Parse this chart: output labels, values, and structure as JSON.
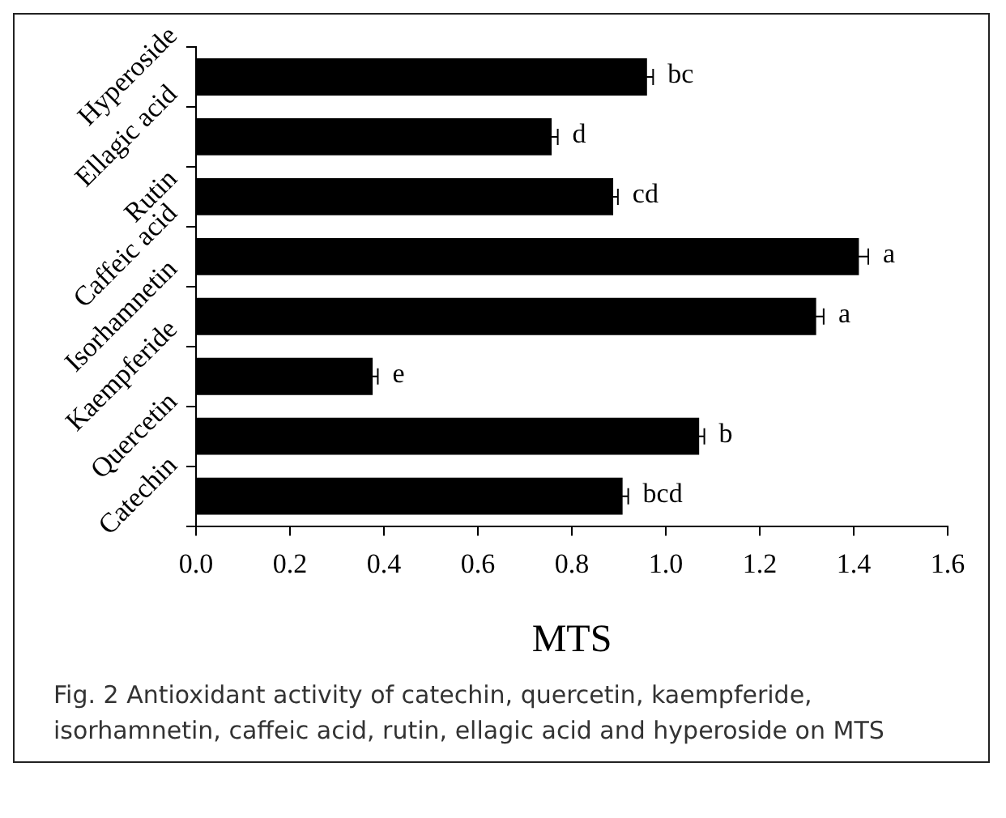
{
  "chart_data": {
    "type": "bar",
    "orientation": "horizontal",
    "xlabel": "MTS",
    "categories": [
      "Hyperoside",
      "Ellagic acid",
      "Rutin",
      "Caffeic acid",
      "Isorhamnetin",
      "Kaempferide",
      "Quercetin",
      "Catechin"
    ],
    "values": [
      0.96,
      0.757,
      0.888,
      1.411,
      1.32,
      0.376,
      1.071,
      0.908
    ],
    "errors": [
      0.013,
      0.013,
      0.01,
      0.02,
      0.016,
      0.011,
      0.011,
      0.012
    ],
    "value_labels": [
      "bc",
      "d",
      "cd",
      "a",
      "a",
      "e",
      "b",
      "bcd"
    ],
    "color": "#000000",
    "xlim": [
      0,
      1.6
    ],
    "xticks": [
      {
        "value": 0,
        "label": "0.0"
      },
      {
        "value": 0.2,
        "label": "0.2"
      },
      {
        "value": 0.4,
        "label": "0.4"
      },
      {
        "value": 0.6,
        "label": "0.6"
      },
      {
        "value": 0.8,
        "label": "0.8"
      },
      {
        "value": 1,
        "label": "1.0"
      },
      {
        "value": 1.2,
        "label": "1.2"
      },
      {
        "value": 1.4,
        "label": "1.4"
      },
      {
        "value": 1.6,
        "label": "1.6"
      }
    ],
    "grid": false,
    "legend": false,
    "annotations": [
      "Fig. 2 Antioxidant activity of catechin, quercetin, kaempferide, isorhamnetin, caffeic acid, rutin, ellagic acid and hyperoside on MTS"
    ]
  }
}
